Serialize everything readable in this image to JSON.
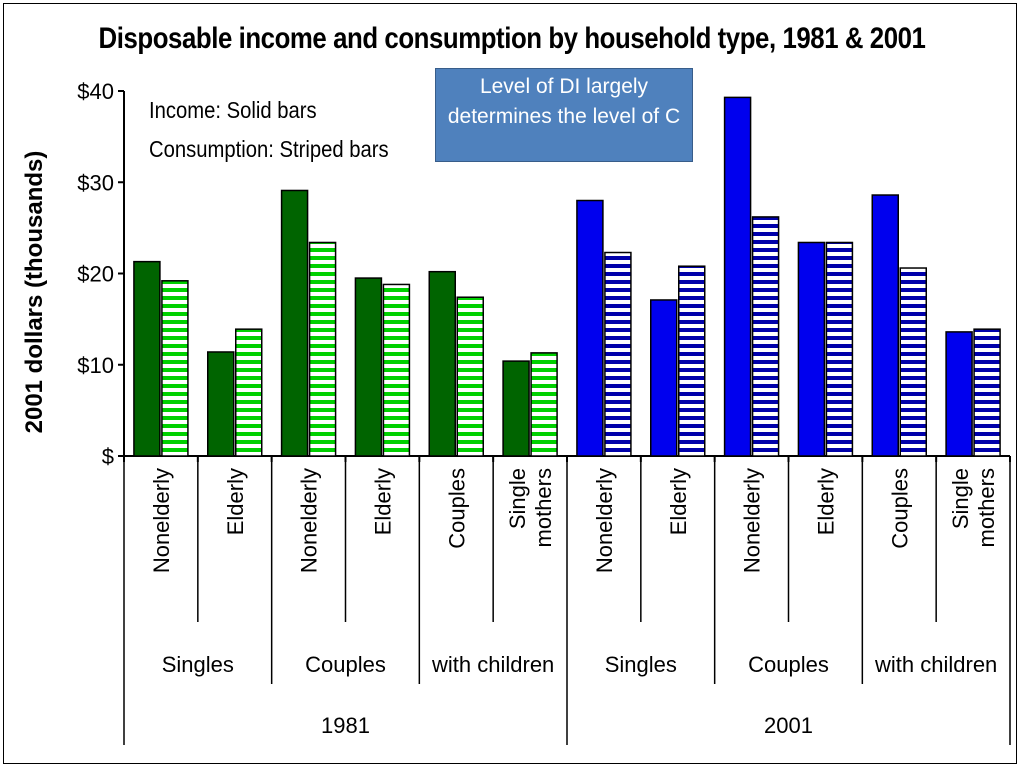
{
  "chart_data": {
    "type": "bar",
    "title": "Disposable income and consumption by household type, 1981 & 2001",
    "ylabel": "2001 dollars (thousands)",
    "ylim": [
      0,
      40
    ],
    "yticks": [
      "$",
      "$10",
      "$20",
      "$30",
      "$40"
    ],
    "legend": {
      "income": "Income: Solid bars",
      "consumption": "Consumption: Striped bars"
    },
    "annotation": "Level of DI largely determines the level of C",
    "categories": [
      {
        "label": "Nonelderly",
        "group": "Singles",
        "year": "1981",
        "income": 21.3,
        "consumption": 19.2
      },
      {
        "label": "Elderly",
        "group": "Singles",
        "year": "1981",
        "income": 11.4,
        "consumption": 13.9
      },
      {
        "label": "Nonelderly",
        "group": "Couples",
        "year": "1981",
        "income": 29.1,
        "consumption": 23.4
      },
      {
        "label": "Elderly",
        "group": "Couples",
        "year": "1981",
        "income": 19.5,
        "consumption": 18.8
      },
      {
        "label": "Couples",
        "group": "with children",
        "year": "1981",
        "income": 20.2,
        "consumption": 17.4
      },
      {
        "label": "Single mothers",
        "group": "with children",
        "year": "1981",
        "income": 10.4,
        "consumption": 11.3
      },
      {
        "label": "Nonelderly",
        "group": "Singles",
        "year": "2001",
        "income": 28.0,
        "consumption": 22.3
      },
      {
        "label": "Elderly",
        "group": "Singles",
        "year": "2001",
        "income": 17.1,
        "consumption": 20.8
      },
      {
        "label": "Nonelderly",
        "group": "Couples",
        "year": "2001",
        "income": 39.3,
        "consumption": 26.2
      },
      {
        "label": "Elderly",
        "group": "Couples",
        "year": "2001",
        "income": 23.4,
        "consumption": 23.4
      },
      {
        "label": "Couples",
        "group": "with children",
        "year": "2001",
        "income": 28.6,
        "consumption": 20.6
      },
      {
        "label": "Single mothers",
        "group": "with children",
        "year": "2001",
        "income": 13.6,
        "consumption": 13.9
      }
    ],
    "groups": [
      "Singles",
      "Couples",
      "with children",
      "Singles",
      "Couples",
      "with children"
    ],
    "years": [
      "1981",
      "2001"
    ],
    "colors": {
      "1981_income": "#006400",
      "1981_stripe": "#00d000",
      "2001_income": "#0000ee",
      "2001_stripe": "#0000aa",
      "callout": "#4f81bd"
    }
  }
}
